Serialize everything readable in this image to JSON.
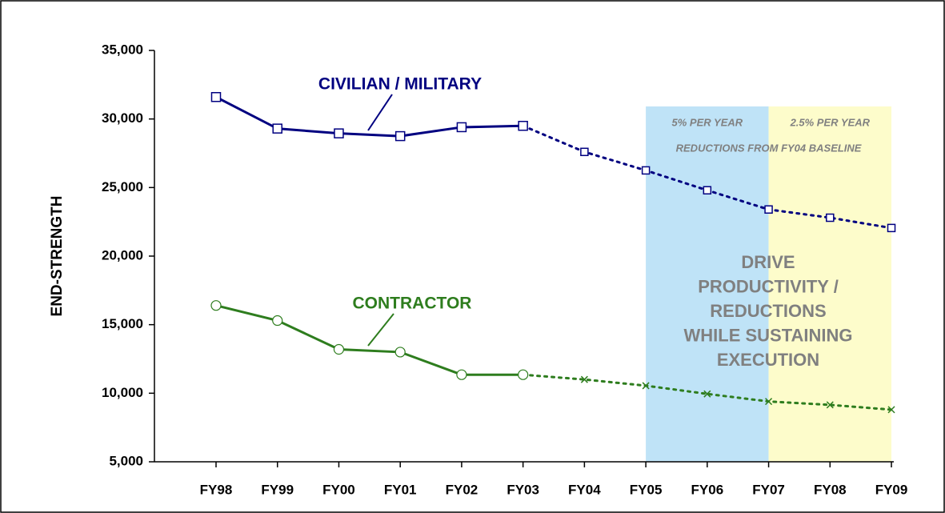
{
  "chart_data": {
    "type": "line",
    "y_label": "END-STRENGTH",
    "categories": [
      "FY98",
      "FY99",
      "FY00",
      "FY01",
      "FY02",
      "FY03",
      "FY04",
      "FY05",
      "FY06",
      "FY07",
      "FY08",
      "FY09"
    ],
    "projection_from": "FY03",
    "series": [
      {
        "name": "CIVILIAN / MILITARY",
        "color": "#000080",
        "marker": "square",
        "values": [
          31600,
          29300,
          28950,
          28750,
          29400,
          29500,
          27600,
          26250,
          24800,
          23400,
          22800,
          22050
        ]
      },
      {
        "name": "CONTRACTOR",
        "color": "#2e7d1e",
        "marker": "circle",
        "values": [
          16400,
          15300,
          13200,
          13000,
          11350,
          11350,
          11000,
          10550,
          9950,
          9400,
          9150,
          8800
        ]
      }
    ],
    "bands": [
      {
        "from": "FY05",
        "to": "FY07",
        "label": "5% PER YEAR",
        "color": "#bfe3f7"
      },
      {
        "from": "FY07",
        "to": "FY09",
        "label": "2.5% PER YEAR",
        "color": "#fdfccb"
      }
    ],
    "band_note": "REDUCTIONS FROM FY04 BASELINE",
    "message": [
      "DRIVE",
      "PRODUCTIVITY /",
      "REDUCTIONS",
      "WHILE SUSTAINING",
      "EXECUTION"
    ],
    "ylim": [
      5000,
      35000
    ],
    "yticks": [
      {
        "value": 5000,
        "label": "5,000"
      },
      {
        "value": 10000,
        "label": "10,000"
      },
      {
        "value": 15000,
        "label": "15,000"
      },
      {
        "value": 20000,
        "label": "20,000"
      },
      {
        "value": 25000,
        "label": "25,000"
      },
      {
        "value": 30000,
        "label": "30,000"
      },
      {
        "value": 35000,
        "label": "35,000"
      }
    ]
  }
}
